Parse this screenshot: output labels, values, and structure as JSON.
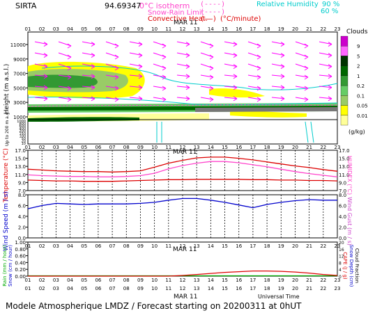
{
  "header": {
    "station": "SIRTA",
    "coords": "94.69347",
    "legend_0c": "0°C isotherm",
    "legend_snow": "Snow-Rain Limit",
    "legend_conv": "Convective Heat.",
    "legend_conv_unit": "(°C/minute)",
    "legend_rh": "Relative Humidity",
    "rh_90": "90 %",
    "rh_60": "60 %",
    "date": "MAR 11"
  },
  "panel1": {
    "ylabel_main": "Height (m a.s.l.)",
    "ylabel_low": "Up to 200 m a.g.l.",
    "yticks_upper": [
      "11000",
      "9000",
      "7000",
      "5000",
      "3000",
      "1000"
    ],
    "yticks_lower": [
      "1000",
      "800",
      "600",
      "400",
      "200",
      "150",
      "100",
      "50",
      "20",
      "10"
    ],
    "cloud_title": "Clouds",
    "cloud_unit": "(g/kg)",
    "cloud_levels": [
      "9",
      "5",
      "2",
      "1",
      "0.2",
      "0.1",
      "0.05",
      "0.01"
    ],
    "cloud_colors": [
      "#cc00cc",
      "#ff66ff",
      "#003300",
      "#006600",
      "#339933",
      "#66cc66",
      "#99cc66",
      "#ffff00",
      "#ffff99"
    ]
  },
  "panel2": {
    "ylabel_left": "Temperature (°C)",
    "ylabel_right": "HUMIDEX (°C)",
    "yticks": [
      "17.0",
      "15.0",
      "13.0",
      "11.0",
      "9.0",
      "7.0"
    ]
  },
  "panel3": {
    "ylabel_left": "Wind Speed (m / s)",
    "ylabel_right": "Wind Gust (m / s)",
    "yticks": [
      "8.0",
      "6.0",
      "4.0",
      "2.0",
      "0.0"
    ]
  },
  "panel4": {
    "ylabel_left1": "Rain (mm / hour)",
    "ylabel_left2": "Snow (cm / hour)",
    "ylabel_right1": "CAPE (J / g)",
    "ylabel_right2": "Snow Depth (cm)",
    "ylabel_right3": "Cloud Fraction",
    "yticks": [
      "1.00",
      "0.80",
      "0.60",
      "0.40",
      "0.20",
      "0.00"
    ],
    "xlabel": "Universal Time"
  },
  "hours": [
    "01",
    "02",
    "03",
    "04",
    "05",
    "06",
    "07",
    "08",
    "09",
    "10",
    "11",
    "12",
    "13",
    "14",
    "15",
    "16",
    "17",
    "18",
    "19",
    "20",
    "21",
    "22",
    "23"
  ],
  "footer": "Modele Atmospherique LMDZ / Forecast starting on 20200311 at 0hUT",
  "chart_data": [
    {
      "type": "line",
      "title": "Temperature / Humidex",
      "x": [
        "01",
        "02",
        "03",
        "04",
        "05",
        "06",
        "07",
        "08",
        "09",
        "10",
        "11",
        "12",
        "13",
        "14",
        "15",
        "16",
        "17",
        "18",
        "19",
        "20",
        "21",
        "22",
        "23"
      ],
      "ylim": [
        7,
        17
      ],
      "series": [
        {
          "name": "Temperature",
          "color": "#dd0000",
          "values": [
            12.3,
            12.1,
            11.9,
            11.8,
            11.7,
            11.7,
            11.6,
            11.7,
            11.9,
            12.8,
            13.8,
            14.5,
            15.1,
            15.3,
            15.3,
            15.0,
            14.6,
            14.1,
            13.6,
            13.1,
            12.7,
            12.2,
            11.8
          ]
        },
        {
          "name": "Humidex",
          "color": "#ff44cc",
          "values": [
            10.9,
            10.7,
            10.6,
            10.5,
            10.5,
            10.4,
            10.4,
            10.5,
            10.7,
            11.3,
            12.4,
            13.2,
            13.8,
            14.2,
            14.2,
            13.9,
            13.4,
            12.9,
            12.3,
            11.7,
            11.2,
            10.8,
            10.4
          ]
        },
        {
          "name": "Temperature-low",
          "color": "#dd0000",
          "values": [
            9.6,
            9.5,
            9.4,
            9.4,
            9.3,
            9.3,
            9.3,
            9.4,
            9.5,
            9.6,
            9.7,
            9.7,
            9.8,
            9.8,
            9.8,
            9.8,
            9.7,
            9.7,
            9.6,
            9.6,
            9.5,
            9.5,
            9.4
          ]
        }
      ]
    },
    {
      "type": "line",
      "title": "Wind Speed",
      "x": [
        "01",
        "02",
        "03",
        "04",
        "05",
        "06",
        "07",
        "08",
        "09",
        "10",
        "11",
        "12",
        "13",
        "14",
        "15",
        "16",
        "17",
        "18",
        "19",
        "20",
        "21",
        "22",
        "23"
      ],
      "ylim": [
        0,
        8
      ],
      "series": [
        {
          "name": "Wind Speed",
          "color": "#0000cc",
          "values": [
            5.4,
            6.0,
            6.4,
            6.3,
            6.2,
            6.3,
            6.3,
            6.3,
            6.4,
            6.6,
            7.0,
            7.3,
            7.3,
            7.0,
            6.6,
            6.1,
            5.6,
            6.2,
            6.6,
            6.9,
            7.1,
            7.0,
            7.0
          ]
        }
      ]
    },
    {
      "type": "line",
      "title": "Rain / Snow / CAPE",
      "x": [
        "01",
        "02",
        "03",
        "04",
        "05",
        "06",
        "07",
        "08",
        "09",
        "10",
        "11",
        "12",
        "13",
        "14",
        "15",
        "16",
        "17",
        "18",
        "19",
        "20",
        "21",
        "22",
        "23"
      ],
      "ylim": [
        0,
        1
      ],
      "series": [
        {
          "name": "Rain",
          "color": "#00aa00",
          "values": [
            0.01,
            0.01,
            0.01,
            0.01,
            0.01,
            0.01,
            0.01,
            0.01,
            0.01,
            0.01,
            0.01,
            0.01,
            0.01,
            0.01,
            0.01,
            0.01,
            0.01,
            0.01,
            0.01,
            0.01,
            0.01,
            0.01,
            0.01
          ]
        },
        {
          "name": "CAPE",
          "color": "#dd0000",
          "values": [
            0,
            0,
            0,
            0,
            0,
            0,
            0,
            0,
            0,
            0,
            0,
            0.02,
            0.05,
            0.08,
            0.11,
            0.13,
            0.15,
            0.15,
            0.14,
            0.12,
            0.09,
            0.05,
            0.02
          ]
        }
      ]
    }
  ]
}
